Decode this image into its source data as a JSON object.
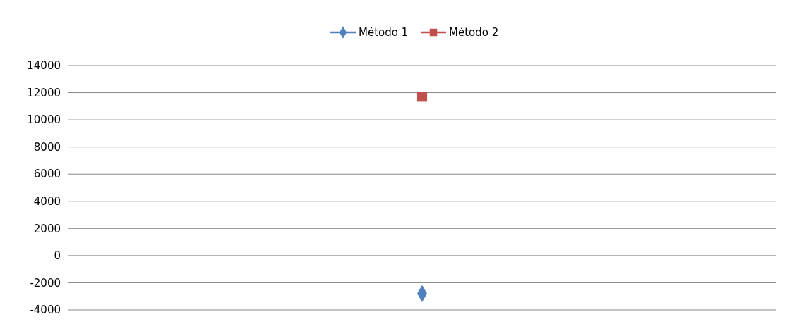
{
  "chart_data": {
    "type": "line",
    "categories": [
      null
    ],
    "series": [
      {
        "name": "Método 1",
        "color": "#4f81bd",
        "values": [
          -2800
        ],
        "marker": "diamond"
      },
      {
        "name": "Método 2",
        "color": "#c0504d",
        "values": [
          11700
        ],
        "marker": "square"
      }
    ],
    "ylim": [
      -4000,
      14000
    ],
    "yticks": [
      -4000,
      -2000,
      0,
      2000,
      4000,
      6000,
      8000,
      10000,
      12000,
      14000
    ],
    "grid": "y",
    "legend": "top"
  }
}
